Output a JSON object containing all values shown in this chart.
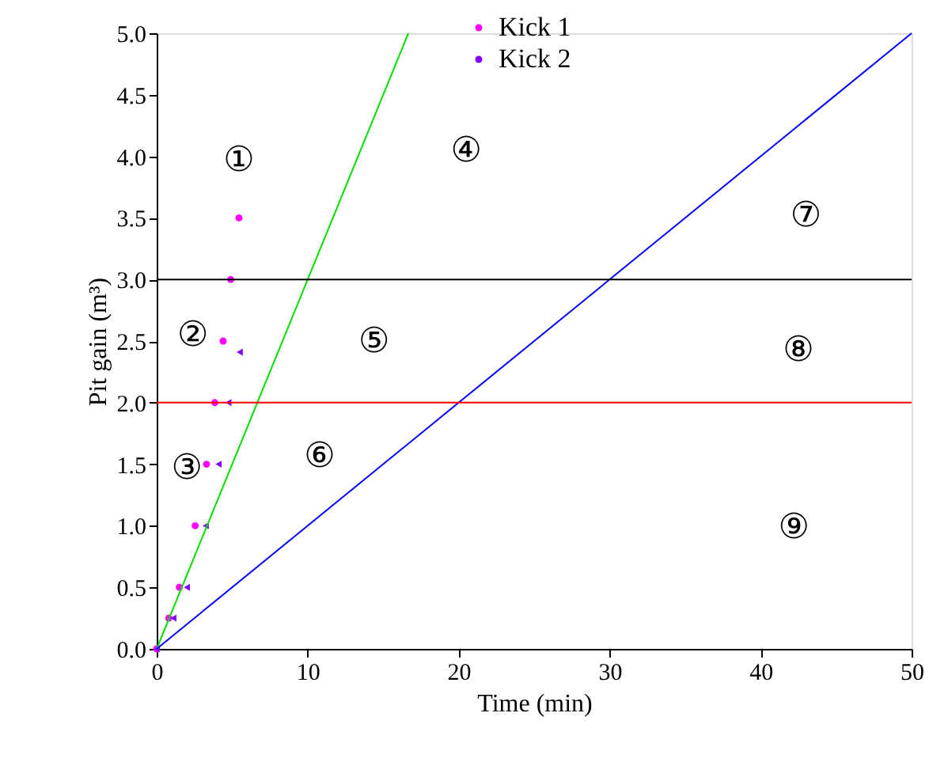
{
  "chart_data": {
    "type": "scatter",
    "xlabel": "Time (min)",
    "ylabel": "Pit gain (m³)",
    "xlim": [
      0,
      50
    ],
    "xticks": [
      0,
      10,
      20,
      30,
      40,
      50
    ],
    "ylim": [
      0,
      5
    ],
    "yticks": [
      {
        "value": 0,
        "label": "0.0"
      },
      0.5,
      {
        "value": 1,
        "label": "1.0"
      },
      1.5,
      {
        "value": 2,
        "label": "2.0"
      },
      2.5,
      {
        "value": 3,
        "label": "3.0"
      },
      3.5,
      {
        "value": 4,
        "label": "4.0"
      },
      4.5,
      {
        "value": 5,
        "label": "5.0"
      }
    ],
    "grid": false,
    "legend": "top",
    "series": [
      {
        "name": "Kick 1",
        "color": "#ff00ff",
        "marker": "circle",
        "x": [
          0,
          0.8,
          1.5,
          2.55,
          3.3,
          3.85,
          4.4,
          4.9,
          5.45
        ],
        "values": [
          0,
          0.25,
          0.5,
          1,
          1.5,
          2,
          2.5,
          3,
          3.5
        ]
      },
      {
        "name": "Kick 2",
        "color": "#8000ff",
        "marker": "triangle",
        "x": [
          0,
          1.1,
          2.0,
          3.25,
          4.1,
          4.75,
          5.5
        ],
        "values": [
          0,
          0.25,
          0.5,
          1,
          1.5,
          2,
          2.41
        ]
      },
      {
        "color": "#00dd00",
        "type": "line",
        "x": [
          0,
          16.67
        ],
        "values": [
          0,
          5
        ]
      },
      {
        "color": "#0000ff",
        "type": "line",
        "x": [
          0,
          50
        ],
        "values": [
          0,
          5
        ]
      }
    ],
    "ref_lines": [
      {
        "axis": "y",
        "value": 3,
        "color": "#000000"
      },
      {
        "axis": "y",
        "value": 2,
        "color": "#ff0000"
      }
    ],
    "annotations": [
      "①",
      "②",
      "③",
      "④",
      "⑤",
      "⑥",
      "⑦",
      "⑧",
      "⑨"
    ]
  }
}
